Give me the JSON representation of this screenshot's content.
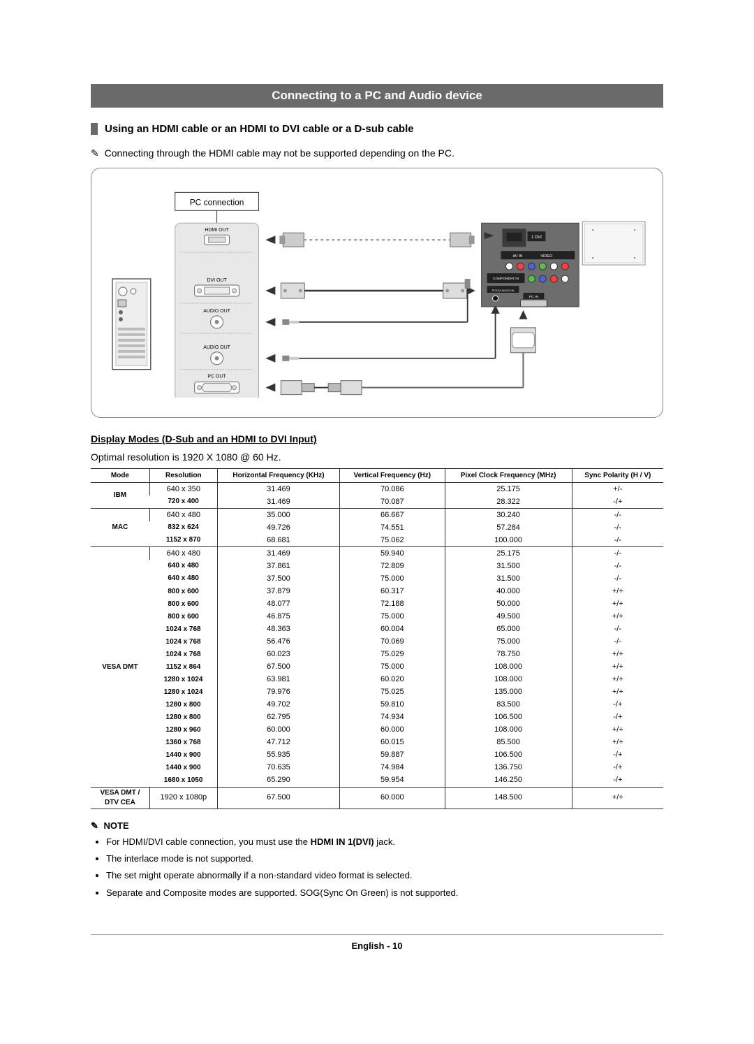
{
  "banner": "Connecting to a PC and Audio device",
  "section_title": "Using an HDMI cable or an HDMI to DVI cable or a D-sub cable",
  "intro_note": "Connecting through the HDMI cable may not be supported depending on the PC.",
  "diagram": {
    "pc_connection_label": "PC connection",
    "hdmi_out": "HDMI OUT",
    "dvi_out": "DVI OUT",
    "audio_out1": "AUDIO OUT",
    "audio_out2": "AUDIO OUT",
    "pc_out": "PC OUT",
    "tv_port_hdmi_dvi": "1 DVI",
    "tv_avin": "AV IN",
    "tv_video": "VIDEO",
    "tv_component": "COMPONENT IN",
    "tv_pc_dvi_audio": "PC/DVI AUDIO IN",
    "tv_pc_in": "PC IN"
  },
  "sub_section": "Display Modes (D-Sub and an HDMI to DVI Input)",
  "optimal": "Optimal resolution is 1920 X 1080 @ 60 Hz.",
  "table": {
    "headers": [
      "Mode",
      "Resolution",
      "Horizontal Frequency (KHz)",
      "Vertical Frequency (Hz)",
      "Pixel Clock Frequency (MHz)",
      "Sync Polarity (H / V)"
    ],
    "groups": [
      {
        "mode": "IBM",
        "rows": [
          [
            "640 x 350",
            "31.469",
            "70.086",
            "25.175",
            "+/-"
          ],
          [
            "720 x 400",
            "31.469",
            "70.087",
            "28.322",
            "-/+"
          ]
        ]
      },
      {
        "mode": "MAC",
        "rows": [
          [
            "640 x 480",
            "35.000",
            "66.667",
            "30.240",
            "-/-"
          ],
          [
            "832 x 624",
            "49.726",
            "74.551",
            "57.284",
            "-/-"
          ],
          [
            "1152 x 870",
            "68.681",
            "75.062",
            "100.000",
            "-/-"
          ]
        ]
      },
      {
        "mode": "VESA DMT",
        "rows": [
          [
            "640 x 480",
            "31.469",
            "59.940",
            "25.175",
            "-/-"
          ],
          [
            "640 x 480",
            "37.861",
            "72.809",
            "31.500",
            "-/-"
          ],
          [
            "640 x 480",
            "37.500",
            "75.000",
            "31.500",
            "-/-"
          ],
          [
            "800 x 600",
            "37.879",
            "60.317",
            "40.000",
            "+/+"
          ],
          [
            "800 x 600",
            "48.077",
            "72.188",
            "50.000",
            "+/+"
          ],
          [
            "800 x 600",
            "46.875",
            "75.000",
            "49.500",
            "+/+"
          ],
          [
            "1024 x 768",
            "48.363",
            "60.004",
            "65.000",
            "-/-"
          ],
          [
            "1024 x 768",
            "56.476",
            "70.069",
            "75.000",
            "-/-"
          ],
          [
            "1024 x 768",
            "60.023",
            "75.029",
            "78.750",
            "+/+"
          ],
          [
            "1152 x 864",
            "67.500",
            "75.000",
            "108.000",
            "+/+"
          ],
          [
            "1280 x 1024",
            "63.981",
            "60.020",
            "108.000",
            "+/+"
          ],
          [
            "1280 x 1024",
            "79.976",
            "75.025",
            "135.000",
            "+/+"
          ],
          [
            "1280 x 800",
            "49.702",
            "59.810",
            "83.500",
            "-/+"
          ],
          [
            "1280 x 800",
            "62.795",
            "74.934",
            "106.500",
            "-/+"
          ],
          [
            "1280 x 960",
            "60.000",
            "60.000",
            "108.000",
            "+/+"
          ],
          [
            "1360 x 768",
            "47.712",
            "60.015",
            "85.500",
            "+/+"
          ],
          [
            "1440 x 900",
            "55.935",
            "59.887",
            "106.500",
            "-/+"
          ],
          [
            "1440 x 900",
            "70.635",
            "74.984",
            "136.750",
            "-/+"
          ],
          [
            "1680 x 1050",
            "65.290",
            "59.954",
            "146.250",
            "-/+"
          ]
        ]
      },
      {
        "mode": "VESA DMT / DTV CEA",
        "rows": [
          [
            "1920 x 1080p",
            "67.500",
            "60.000",
            "148.500",
            "+/+"
          ]
        ]
      }
    ]
  },
  "note_title": "NOTE",
  "notes": [
    {
      "pre": "For HDMI/DVI cable connection, you must use the ",
      "bold": "HDMI IN 1(DVI)",
      "post": " jack."
    },
    {
      "pre": "The interlace mode is not supported.",
      "bold": "",
      "post": ""
    },
    {
      "pre": "The set might operate abnormally if a non-standard video format is selected.",
      "bold": "",
      "post": ""
    },
    {
      "pre": "Separate and Composite modes are supported. SOG(Sync On Green) is not supported.",
      "bold": "",
      "post": ""
    }
  ],
  "footer_lang": "English - ",
  "footer_page": "10"
}
